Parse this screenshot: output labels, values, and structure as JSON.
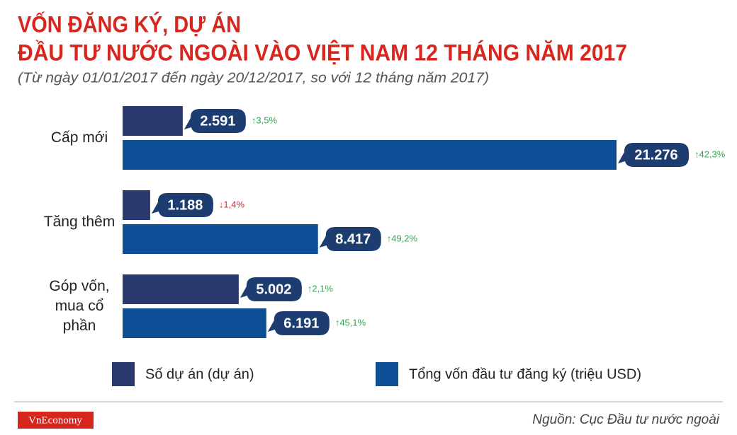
{
  "chart_data": {
    "type": "bar",
    "orientation": "horizontal",
    "title": [
      "VỐN ĐĂNG KÝ, DỰ ÁN",
      "ĐẦU TƯ NƯỚC NGOÀI VÀO VIỆT NAM 12 THÁNG NĂM 2017"
    ],
    "subtitle": "(Từ ngày 01/01/2017 đến ngày 20/12/2017, so với 12 tháng năm 2017)",
    "categories": [
      "Cấp mới",
      "Tăng thêm",
      "Góp vốn, mua cổ phần"
    ],
    "series": [
      {
        "name": "Số dự án (dự án)",
        "color": "#2b3a6e",
        "values": [
          2591,
          1188,
          5002
        ],
        "value_labels": [
          "2.591",
          "1.188",
          "5.002"
        ],
        "changes": [
          3.5,
          -1.4,
          2.1
        ],
        "change_labels": [
          "↑3,5%",
          "↓1,4%",
          "↑2,1%"
        ]
      },
      {
        "name": "Tổng vốn đầu tư đăng ký (triệu USD)",
        "color": "#0d4f96",
        "values": [
          21276,
          8417,
          6191
        ],
        "value_labels": [
          "21.276",
          "8.417",
          "6.191"
        ],
        "changes": [
          42.3,
          49.2,
          45.1
        ],
        "change_labels": [
          "↑42,3%",
          "↑49,2%",
          "↑45,1%"
        ]
      }
    ]
  },
  "footer": {
    "logo": "VnEconomy",
    "source": "Nguồn: Cục Đầu tư nước ngoài"
  }
}
